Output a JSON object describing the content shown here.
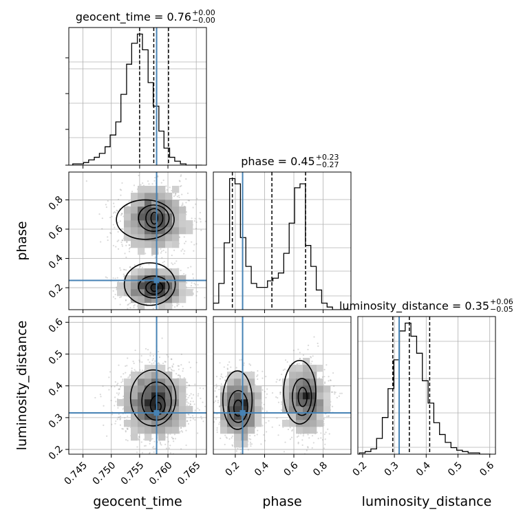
{
  "chart_data": {
    "type": "corner",
    "parameters": [
      "geocent_time",
      "phase",
      "luminosity_distance"
    ],
    "truth": {
      "geocent_time": 0.758,
      "phase": 0.25,
      "luminosity_distance": 0.315
    },
    "titles": [
      {
        "param": "geocent_time",
        "text": "geocent_time = 0.76",
        "plus": "+0.00",
        "minus": "−0.00"
      },
      {
        "param": "phase",
        "text": "phase = 0.45",
        "plus": "+0.23",
        "minus": "−0.27"
      },
      {
        "param": "luminosity_distance",
        "text": "luminosity_distance = 0.35",
        "plus": "+0.06",
        "minus": "−0.05"
      }
    ],
    "axes": {
      "geocent_time": {
        "range": [
          0.7425,
          0.7668
        ],
        "ticks": [
          "0.745",
          "0.750",
          "0.755",
          "0.760",
          "0.765"
        ],
        "tick_values": [
          0.745,
          0.75,
          0.755,
          0.76,
          0.765
        ]
      },
      "phase": {
        "range": [
          0.05,
          0.99
        ],
        "ticks": [
          "0.2",
          "0.4",
          "0.6",
          "0.8"
        ],
        "tick_values": [
          0.2,
          0.4,
          0.6,
          0.8
        ]
      },
      "luminosity_distance": {
        "range": [
          0.185,
          0.618
        ],
        "ticks": [
          "0.2",
          "0.3",
          "0.4",
          "0.5",
          "0.6"
        ],
        "tick_values": [
          0.2,
          0.3,
          0.4,
          0.5,
          0.6
        ]
      }
    },
    "histograms": {
      "geocent_time": {
        "quantiles": [
          0.755,
          0.7575,
          0.7601
        ],
        "bin_edges": [
          0.7432,
          0.7441,
          0.7451,
          0.746,
          0.747,
          0.7479,
          0.7489,
          0.7498,
          0.7508,
          0.7517,
          0.7527,
          0.7536,
          0.7546,
          0.7555,
          0.7565,
          0.7574,
          0.7584,
          0.7593,
          0.7603,
          0.7612,
          0.7622,
          0.7632,
          0.7641,
          0.7651,
          0.766
        ],
        "counts": [
          0.01,
          0.01,
          0.02,
          0.04,
          0.06,
          0.09,
          0.14,
          0.23,
          0.33,
          0.54,
          0.77,
          0.93,
          1.0,
          0.88,
          0.63,
          0.45,
          0.26,
          0.13,
          0.06,
          0.03,
          0.01,
          0.0,
          0.0,
          0.0
        ]
      },
      "phase": {
        "quantiles": [
          0.18,
          0.45,
          0.68
        ],
        "bin_edges": [
          0.05,
          0.087,
          0.124,
          0.161,
          0.198,
          0.235,
          0.272,
          0.309,
          0.346,
          0.383,
          0.42,
          0.457,
          0.494,
          0.531,
          0.568,
          0.605,
          0.642,
          0.679,
          0.716,
          0.753,
          0.79,
          0.827,
          0.864,
          0.901,
          0.938,
          0.975
        ],
        "counts": [
          0.05,
          0.2,
          0.51,
          1.0,
          0.96,
          0.55,
          0.33,
          0.2,
          0.17,
          0.17,
          0.22,
          0.24,
          0.28,
          0.43,
          0.66,
          0.93,
          0.96,
          0.49,
          0.33,
          0.15,
          0.05,
          0.02,
          0.0,
          0.0,
          0.0
        ]
      },
      "luminosity_distance": {
        "quantiles": [
          0.295,
          0.347,
          0.411
        ],
        "bin_edges": [
          0.19,
          0.208,
          0.226,
          0.244,
          0.262,
          0.28,
          0.298,
          0.316,
          0.334,
          0.352,
          0.37,
          0.388,
          0.406,
          0.424,
          0.442,
          0.46,
          0.478,
          0.496,
          0.514,
          0.532,
          0.55,
          0.568,
          0.586,
          0.604
        ],
        "counts": [
          0.01,
          0.02,
          0.04,
          0.12,
          0.28,
          0.5,
          0.72,
          0.94,
          1.0,
          0.9,
          0.77,
          0.56,
          0.39,
          0.24,
          0.15,
          0.09,
          0.05,
          0.03,
          0.02,
          0.01,
          0.01,
          0.0,
          0.0
        ]
      }
    },
    "joint": [
      {
        "x": "geocent_time",
        "y": "phase",
        "modes": [
          {
            "cx": 0.7576,
            "cy": 0.675,
            "sx": 0.0031,
            "sy": 0.115,
            "w": 0.58
          },
          {
            "cx": 0.7575,
            "cy": 0.2,
            "sx": 0.0029,
            "sy": 0.065,
            "w": 0.42
          }
        ],
        "contours": [
          {
            "cx": 0.7576,
            "cy": 0.675,
            "rx": 0.0006,
            "ry": 0.04
          },
          {
            "cx": 0.7576,
            "cy": 0.675,
            "rx": 0.0015,
            "ry": 0.065
          },
          {
            "cx": 0.7575,
            "cy": 0.675,
            "rx": 0.0027,
            "ry": 0.09
          },
          {
            "cx": 0.756,
            "cy": 0.665,
            "rx": 0.0051,
            "ry": 0.135
          },
          {
            "cx": 0.7576,
            "cy": 0.2,
            "rx": 0.0006,
            "ry": 0.025
          },
          {
            "cx": 0.7576,
            "cy": 0.2,
            "rx": 0.0015,
            "ry": 0.045
          },
          {
            "cx": 0.7575,
            "cy": 0.205,
            "rx": 0.0027,
            "ry": 0.075
          },
          {
            "cx": 0.7568,
            "cy": 0.225,
            "rx": 0.0045,
            "ry": 0.145
          }
        ]
      },
      {
        "x": "geocent_time",
        "y": "luminosity_distance",
        "modes": [
          {
            "cx": 0.7578,
            "cy": 0.345,
            "sx": 0.003,
            "sy": 0.06,
            "w": 1.0
          }
        ],
        "contours": [
          {
            "cx": 0.7583,
            "cy": 0.335,
            "rx": 0.0005,
            "ry": 0.013
          },
          {
            "cx": 0.7582,
            "cy": 0.34,
            "rx": 0.0013,
            "ry": 0.03
          },
          {
            "cx": 0.758,
            "cy": 0.352,
            "rx": 0.0026,
            "ry": 0.06
          },
          {
            "cx": 0.7574,
            "cy": 0.362,
            "rx": 0.004,
            "ry": 0.088
          }
        ]
      },
      {
        "x": "phase",
        "y": "luminosity_distance",
        "modes": [
          {
            "cx": 0.23,
            "cy": 0.33,
            "sx": 0.07,
            "sy": 0.055,
            "w": 0.5
          },
          {
            "cx": 0.68,
            "cy": 0.36,
            "sx": 0.08,
            "sy": 0.06,
            "w": 0.5
          }
        ],
        "contours": [
          {
            "cx": 0.22,
            "cy": 0.33,
            "rx": 0.03,
            "ry": 0.025
          },
          {
            "cx": 0.22,
            "cy": 0.335,
            "rx": 0.065,
            "ry": 0.05
          },
          {
            "cx": 0.215,
            "cy": 0.355,
            "rx": 0.1,
            "ry": 0.092
          },
          {
            "cx": 0.66,
            "cy": 0.365,
            "rx": 0.03,
            "ry": 0.03
          },
          {
            "cx": 0.655,
            "cy": 0.365,
            "rx": 0.065,
            "ry": 0.058
          },
          {
            "cx": 0.64,
            "cy": 0.38,
            "rx": 0.11,
            "ry": 0.1
          }
        ]
      }
    ],
    "colors": {
      "truth": "#4682b4",
      "hist": "#000000",
      "grid": "#b0b0b0",
      "samples": "#808080"
    },
    "grid": true
  }
}
